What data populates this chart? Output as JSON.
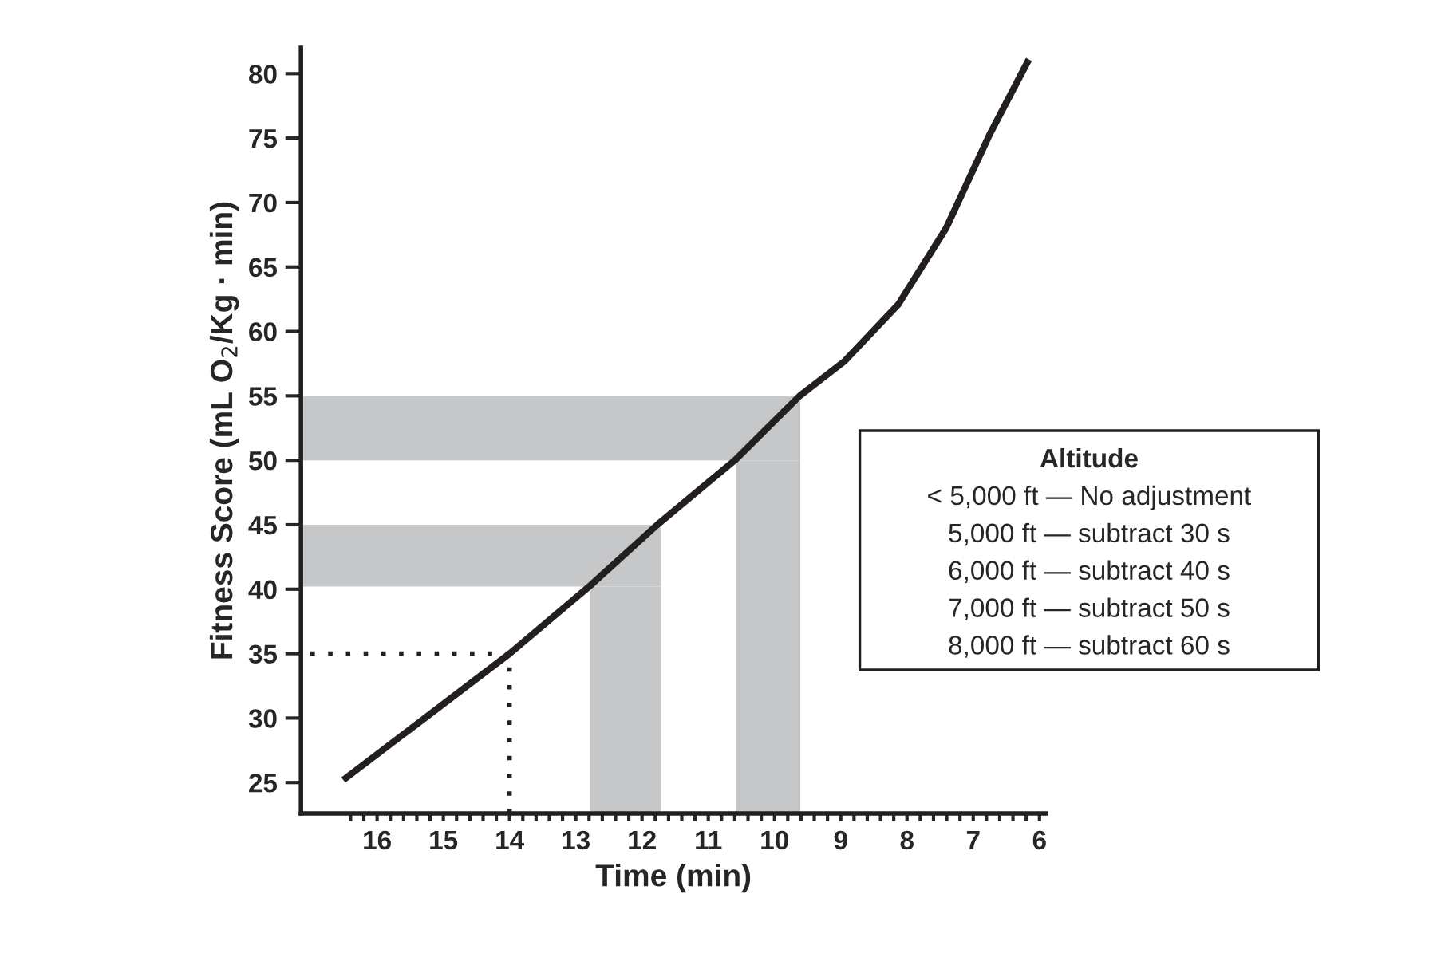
{
  "chart_data": {
    "type": "line",
    "xlabel": "Time (min)",
    "ylabel": "Fitness Score (mL O$_{2}$/Kg · min)",
    "xlim": [
      17.15,
      5.9
    ],
    "ylim": [
      22.6,
      82
    ],
    "xticks": [
      16,
      15,
      14,
      13,
      12,
      11,
      10,
      9,
      8,
      7,
      6,
      {
        "value": 16.4,
        "label": null
      },
      {
        "value": 16.2,
        "label": null
      },
      {
        "value": 15.8,
        "label": null
      },
      {
        "value": 15.6,
        "label": null
      },
      {
        "value": 15.4,
        "label": null
      },
      {
        "value": 15.2,
        "label": null
      },
      {
        "value": 14.8,
        "label": null
      },
      {
        "value": 14.6,
        "label": null
      },
      {
        "value": 14.4,
        "label": null
      },
      {
        "value": 14.2,
        "label": null
      },
      {
        "value": 13.8,
        "label": null
      },
      {
        "value": 13.6,
        "label": null
      },
      {
        "value": 13.4,
        "label": null
      },
      {
        "value": 13.2,
        "label": null
      },
      {
        "value": 12.8,
        "label": null
      },
      {
        "value": 12.6,
        "label": null
      },
      {
        "value": 12.4,
        "label": null
      },
      {
        "value": 12.2,
        "label": null
      },
      {
        "value": 11.8,
        "label": null
      },
      {
        "value": 11.6,
        "label": null
      },
      {
        "value": 11.4,
        "label": null
      },
      {
        "value": 11.2,
        "label": null
      },
      {
        "value": 10.8,
        "label": null
      },
      {
        "value": 10.6,
        "label": null
      },
      {
        "value": 10.4,
        "label": null
      },
      {
        "value": 10.2,
        "label": null
      },
      {
        "value": 9.8,
        "label": null
      },
      {
        "value": 9.6,
        "label": null
      },
      {
        "value": 9.4,
        "label": null
      },
      {
        "value": 9.2,
        "label": null
      },
      {
        "value": 8.8,
        "label": null
      },
      {
        "value": 8.6,
        "label": null
      },
      {
        "value": 8.4,
        "label": null
      },
      {
        "value": 8.2,
        "label": null
      },
      {
        "value": 7.8,
        "label": null
      },
      {
        "value": 7.6,
        "label": null
      },
      {
        "value": 7.4,
        "label": null
      },
      {
        "value": 7.2,
        "label": null
      },
      {
        "value": 6.8,
        "label": null
      },
      {
        "value": 6.6,
        "label": null
      },
      {
        "value": 6.4,
        "label": null
      },
      {
        "value": 6.2,
        "label": null
      }
    ],
    "yticks": [
      25,
      30,
      35,
      40,
      45,
      50,
      55,
      60,
      65,
      70,
      75,
      80
    ],
    "grid": false,
    "legend": false,
    "bands": [
      {
        "axis": "y",
        "from": 40.2,
        "to": 45,
        "color": "#c6c7c9"
      },
      {
        "axis": "x",
        "from": 12.78,
        "to": 11.72,
        "color": "#c6c7c9"
      },
      {
        "axis": "y",
        "from": 50,
        "to": 55,
        "color": "#c6c7c9"
      },
      {
        "axis": "x",
        "from": 10.58,
        "to": 9.61,
        "color": "#c6c7c9"
      }
    ],
    "series": [
      {
        "color": "#231f20",
        "line_style": "dotted",
        "x": [
          14,
          14,
          17.15
        ],
        "values": [
          22.6,
          35,
          35
        ]
      },
      {
        "type": "line",
        "color": "#231f20",
        "line_style": "solid",
        "x": [
          16.51,
          14,
          12.8,
          11.77,
          10.6,
          9.62,
          8.94,
          8.13,
          7.41,
          6.76,
          6.16
        ],
        "values": [
          25.2,
          35,
          40.2,
          45,
          50,
          55,
          57.7,
          62.1,
          68,
          75.2,
          81.1
        ]
      }
    ],
    "annotations": [
      "Altitude",
      "< 5,000 ft — No adjustment",
      "5,000 ft — subtract 30 s",
      "6,000 ft — subtract 40 s",
      "7,000 ft — subtract 50 s",
      "8,000 ft — subtract 60 s"
    ]
  }
}
